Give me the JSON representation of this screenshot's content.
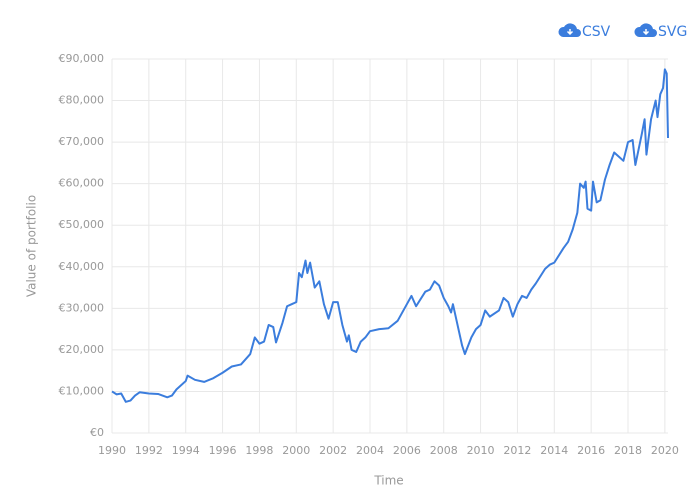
{
  "toolbar": [
    "CSV",
    "SVG"
  ],
  "chart_data": {
    "type": "line",
    "xlabel": "Time",
    "ylabel": "Value of portfolio",
    "color": "#3b7ddd",
    "grid": true,
    "xlim": [
      1990,
      2020.17
    ],
    "xticks": [
      1990,
      1992,
      1994,
      1996,
      1998,
      2000,
      2002,
      2004,
      2006,
      2008,
      2010,
      2012,
      2014,
      2016,
      2018,
      2020
    ],
    "ylim": [
      0,
      90000
    ],
    "yticks": [
      {
        "value": 0,
        "label": "€0"
      },
      {
        "value": 10000,
        "label": "€10,000"
      },
      {
        "value": 20000,
        "label": "€20,000"
      },
      {
        "value": 30000,
        "label": "€30,000"
      },
      {
        "value": 40000,
        "label": "€40,000"
      },
      {
        "value": 50000,
        "label": "€50,000"
      },
      {
        "value": 60000,
        "label": "€60,000"
      },
      {
        "value": 70000,
        "label": "€70,000"
      },
      {
        "value": 80000,
        "label": "€80,000"
      },
      {
        "value": 90000,
        "label": "€90,000"
      }
    ],
    "x": [
      1990,
      1990.25,
      1990.5,
      1990.75,
      1991,
      1991.25,
      1991.5,
      1992,
      1992.5,
      1993,
      1993.25,
      1993.5,
      1994,
      1994.1,
      1994.5,
      1995,
      1995.5,
      1996,
      1996.5,
      1997,
      1997.5,
      1997.75,
      1998,
      1998.25,
      1998.5,
      1998.75,
      1998.9,
      1999.25,
      1999.5,
      1999.75,
      2000,
      2000.15,
      2000.3,
      2000.5,
      2000.6,
      2000.75,
      2001,
      2001.25,
      2001.5,
      2001.75,
      2002,
      2002.25,
      2002.5,
      2002.75,
      2002.85,
      2003,
      2003.25,
      2003.5,
      2003.75,
      2004,
      2004.5,
      2005,
      2005.5,
      2006,
      2006.25,
      2006.5,
      2007,
      2007.25,
      2007.5,
      2007.75,
      2008,
      2008.25,
      2008.4,
      2008.5,
      2008.7,
      2009,
      2009.15,
      2009.5,
      2009.75,
      2010,
      2010.25,
      2010.5,
      2011,
      2011.25,
      2011.5,
      2011.75,
      2012,
      2012.25,
      2012.5,
      2012.75,
      2013,
      2013.5,
      2013.75,
      2014,
      2014.5,
      2014.75,
      2015,
      2015.25,
      2015.4,
      2015.6,
      2015.7,
      2015.8,
      2016,
      2016.1,
      2016.3,
      2016.5,
      2016.75,
      2017,
      2017.25,
      2017.5,
      2017.75,
      2018,
      2018.25,
      2018.4,
      2018.75,
      2018.9,
      2019,
      2019.25,
      2019.5,
      2019.6,
      2019.75,
      2019.9,
      2020,
      2020.1,
      2020.17
    ],
    "values": [
      10000,
      9300,
      9500,
      7500,
      7800,
      9000,
      9800,
      9500,
      9400,
      8600,
      9000,
      10500,
      12500,
      13800,
      12800,
      12300,
      13200,
      14500,
      16000,
      16500,
      19000,
      23000,
      21500,
      22000,
      26000,
      25500,
      21800,
      26500,
      30500,
      31000,
      31500,
      38500,
      37500,
      41500,
      38500,
      41000,
      35000,
      36500,
      31000,
      27500,
      31500,
      31500,
      26000,
      22000,
      23500,
      20000,
      19500,
      22000,
      23000,
      24500,
      25000,
      25200,
      27000,
      31000,
      33000,
      30500,
      34000,
      34500,
      36500,
      35500,
      32500,
      30500,
      29000,
      31000,
      27000,
      21000,
      19000,
      23000,
      25000,
      26000,
      29500,
      28000,
      29500,
      32500,
      31500,
      28000,
      31000,
      33000,
      32500,
      34500,
      36000,
      39500,
      40500,
      41000,
      44500,
      46000,
      49000,
      53000,
      60000,
      59000,
      60500,
      54000,
      53500,
      60500,
      55500,
      56000,
      61000,
      64500,
      67500,
      66500,
      65500,
      70000,
      70500,
      64500,
      72000,
      75500,
      67000,
      75500,
      80000,
      76000,
      81500,
      83000,
      87500,
      86500,
      71000
    ]
  }
}
